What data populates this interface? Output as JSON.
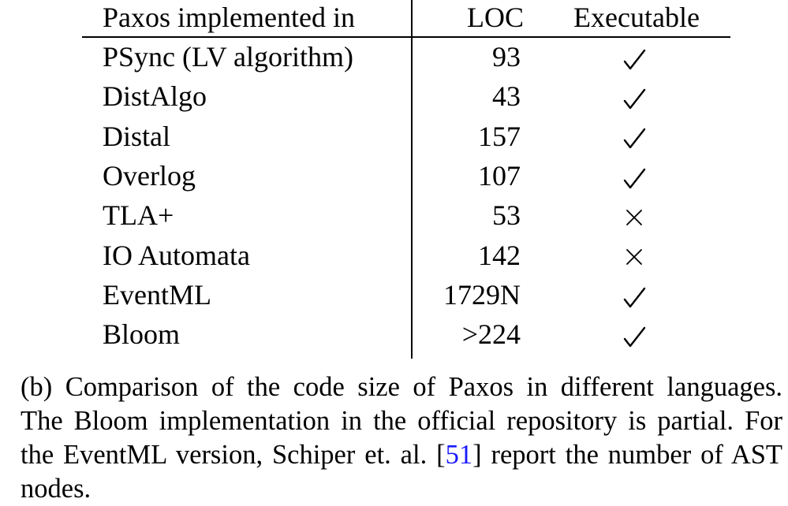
{
  "table": {
    "headers": {
      "language": "Paxos implemented in",
      "loc": "LOC",
      "executable": "Executable"
    },
    "rows": [
      {
        "language": "PSync (LV algorithm)",
        "loc": "93",
        "executable": true
      },
      {
        "language": "DistAlgo",
        "loc": "43",
        "executable": true
      },
      {
        "language": "Distal",
        "loc": "157",
        "executable": true
      },
      {
        "language": "Overlog",
        "loc": "107",
        "executable": true
      },
      {
        "language": "TLA+",
        "loc": "53",
        "executable": false
      },
      {
        "language": "IO Automata",
        "loc": "142",
        "executable": false
      },
      {
        "language": "EventML",
        "loc": "1729N",
        "executable": true
      },
      {
        "language": "Bloom",
        "loc": ">224",
        "executable": true
      }
    ],
    "check_glyph": "check-mark-icon",
    "cross_glyph": "cross-mark-icon"
  },
  "caption": {
    "line1": "(b) Comparison of the code size of Paxos in different languages.",
    "line2": "The Bloom implementation in the official repository is partial. For",
    "line3_before": "the EventML version, Schiper et. al. [",
    "line3_ref": "51",
    "line3_after": "] report the number of AST",
    "line4": "nodes."
  },
  "colors": {
    "text": "#000000",
    "reference_link": "#1a1aff"
  }
}
